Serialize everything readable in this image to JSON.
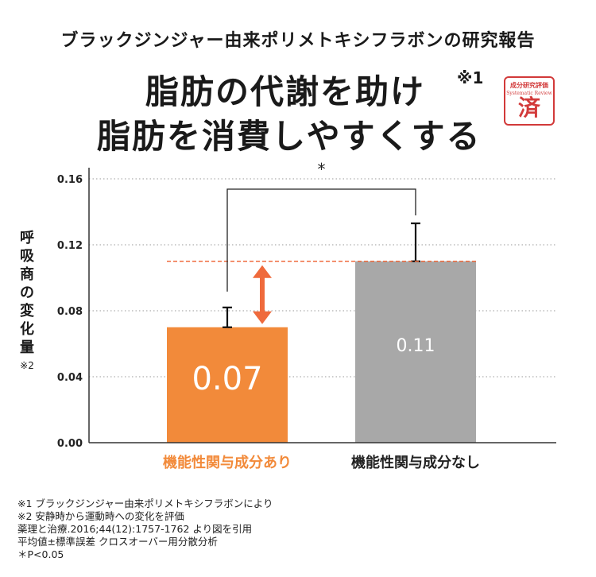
{
  "header": {
    "subtitle": "ブラックジンジャー由来ポリメトキシフラボンの研究報告",
    "headline_line1": "脂肪の代謝を助け",
    "headline_sup": "※1",
    "headline_line2": "脂肪を消費しやすくする"
  },
  "stamp": {
    "top_text": "成分研究評価",
    "sub_text": "Systematic Review",
    "main_char": "済"
  },
  "colors": {
    "orange_bar": "#f28a3a",
    "gray_bar": "#a8a8a8",
    "arrow": "#ef6a3c",
    "dashed_line": "#ef6a3c"
  },
  "chart_data": {
    "type": "bar",
    "categories": [
      "機能性関与成分あり",
      "機能性関与成分なし"
    ],
    "values": [
      0.07,
      0.11
    ],
    "value_labels": [
      "0.07",
      "0.11"
    ],
    "error_upper": [
      0.082,
      0.133
    ],
    "error_lower": [
      0.07,
      0.11
    ],
    "ylabel": "呼吸商の変化量",
    "ylabel_note": "※2",
    "ylim": [
      0,
      0.16
    ],
    "yticks": [
      "0.00",
      "0.04",
      "0.08",
      "0.12",
      "0.16"
    ],
    "ytick_values": [
      0,
      0.04,
      0.08,
      0.12,
      0.16
    ],
    "significance": "*",
    "grid": true
  },
  "footnotes": [
    "※1 ブラックジンジャー由来ポリメトキシフラボンにより",
    "※2 安静時から運動時への変化を評価",
    "薬理と治療.2016;44(12):1757-1762 より図を引用",
    "平均値±標準誤差 クロスオーバー用分散分析",
    "＊P<0.05"
  ]
}
